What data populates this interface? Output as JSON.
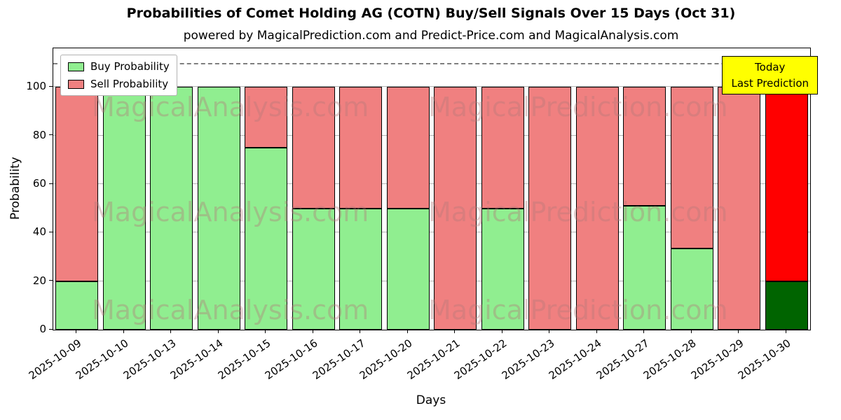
{
  "chart_data": {
    "type": "bar",
    "stacked": true,
    "title": "Probabilities of Comet Holding AG (COTN) Buy/Sell Signals Over 15 Days (Oct 31)",
    "subtitle": "powered by MagicalPrediction.com and Predict-Price.com and MagicalAnalysis.com",
    "xlabel": "Days",
    "ylabel": "Probability",
    "ylim": [
      0,
      116
    ],
    "yticks": [
      0,
      20,
      40,
      60,
      80,
      100
    ],
    "grid": "horizontal",
    "dashed_line_y": 110,
    "categories": [
      "2025-10-09",
      "2025-10-10",
      "2025-10-13",
      "2025-10-14",
      "2025-10-15",
      "2025-10-16",
      "2025-10-17",
      "2025-10-20",
      "2025-10-21",
      "2025-10-22",
      "2025-10-23",
      "2025-10-24",
      "2025-10-27",
      "2025-10-28",
      "2025-10-29",
      "2025-10-30"
    ],
    "series": [
      {
        "name": "Buy Probability",
        "color": "#90EE90",
        "values": [
          20,
          100,
          100,
          100,
          75,
          50,
          50,
          50,
          0,
          50,
          0,
          0,
          51,
          33.5,
          0,
          20
        ]
      },
      {
        "name": "Sell Probability",
        "color": "#F08080",
        "values": [
          80,
          0,
          0,
          0,
          25,
          50,
          50,
          50,
          100,
          50,
          100,
          100,
          49,
          66.5,
          100,
          80
        ]
      }
    ],
    "today": {
      "index": 15,
      "buy_color": "#006400",
      "sell_color": "#FF0000"
    },
    "legend": {
      "position": "upper-left",
      "items": [
        {
          "label": "Buy Probability",
          "color": "#90EE90"
        },
        {
          "label": "Sell Probability",
          "color": "#F08080"
        }
      ]
    },
    "annotation": {
      "line1": "Today",
      "line2": "Last Prediction",
      "bg": "#FFFF00"
    },
    "watermarks": {
      "left": "MagicalAnalysis.com",
      "right": "MagicalPrediction.com",
      "rows": 3
    }
  }
}
